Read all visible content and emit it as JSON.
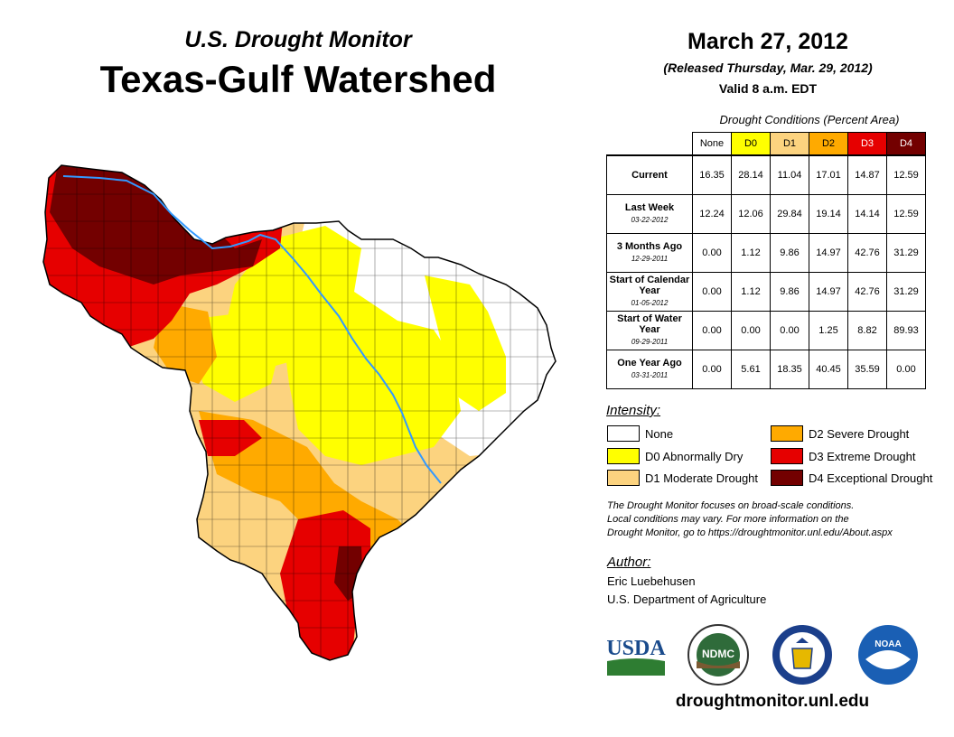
{
  "header": {
    "subtitle": "U.S. Drought Monitor",
    "title": "Texas-Gulf Watershed",
    "date": "March 27, 2012",
    "released": "(Released Thursday, Mar. 29, 2012)",
    "valid": "Valid 8 a.m. EDT"
  },
  "table": {
    "caption": "Drought Conditions (Percent Area)",
    "columns": [
      "None",
      "D0",
      "D1",
      "D2",
      "D3",
      "D4"
    ],
    "column_colors": [
      "#ffffff",
      "#ffff00",
      "#fcd37f",
      "#ffaa00",
      "#e60000",
      "#730000"
    ],
    "rows": [
      {
        "label": "Current",
        "date": "",
        "values": [
          "16.35",
          "28.14",
          "11.04",
          "17.01",
          "14.87",
          "12.59"
        ]
      },
      {
        "label": "Last Week",
        "date": "03-22-2012",
        "values": [
          "12.24",
          "12.06",
          "29.84",
          "19.14",
          "14.14",
          "12.59"
        ]
      },
      {
        "label": "3 Months Ago",
        "date": "12-29-2011",
        "values": [
          "0.00",
          "1.12",
          "9.86",
          "14.97",
          "42.76",
          "31.29"
        ]
      },
      {
        "label": "Start of Calendar Year",
        "date": "01-05-2012",
        "values": [
          "0.00",
          "1.12",
          "9.86",
          "14.97",
          "42.76",
          "31.29"
        ]
      },
      {
        "label": "Start of Water Year",
        "date": "09-29-2011",
        "values": [
          "0.00",
          "0.00",
          "0.00",
          "1.25",
          "8.82",
          "89.93"
        ]
      },
      {
        "label": "One Year Ago",
        "date": "03-31-2011",
        "values": [
          "0.00",
          "5.61",
          "18.35",
          "40.45",
          "35.59",
          "0.00"
        ]
      }
    ]
  },
  "legend": {
    "title": "Intensity:",
    "items": [
      {
        "label": "None",
        "color": "#ffffff"
      },
      {
        "label": "D0 Abnormally Dry",
        "color": "#ffff00"
      },
      {
        "label": "D1 Moderate Drought",
        "color": "#fcd37f"
      },
      {
        "label": "D2 Severe Drought",
        "color": "#ffaa00"
      },
      {
        "label": "D3 Extreme Drought",
        "color": "#e60000"
      },
      {
        "label": "D4 Exceptional Drought",
        "color": "#730000"
      }
    ]
  },
  "note": {
    "line1": "The Drought Monitor focuses on broad-scale conditions.",
    "line2": "Local conditions may vary. For more information on the",
    "line3": "Drought Monitor, go to https://droughtmonitor.unl.edu/About.aspx"
  },
  "author": {
    "title": "Author:",
    "name": "Eric Luebehusen",
    "org": "U.S. Department of Agriculture"
  },
  "logos": {
    "usda": "USDA",
    "ndmc": "NDMC",
    "noaa": "NOAA",
    "commerce": "commerce-seal-icon"
  },
  "website": "droughtmonitor.unl.edu"
}
